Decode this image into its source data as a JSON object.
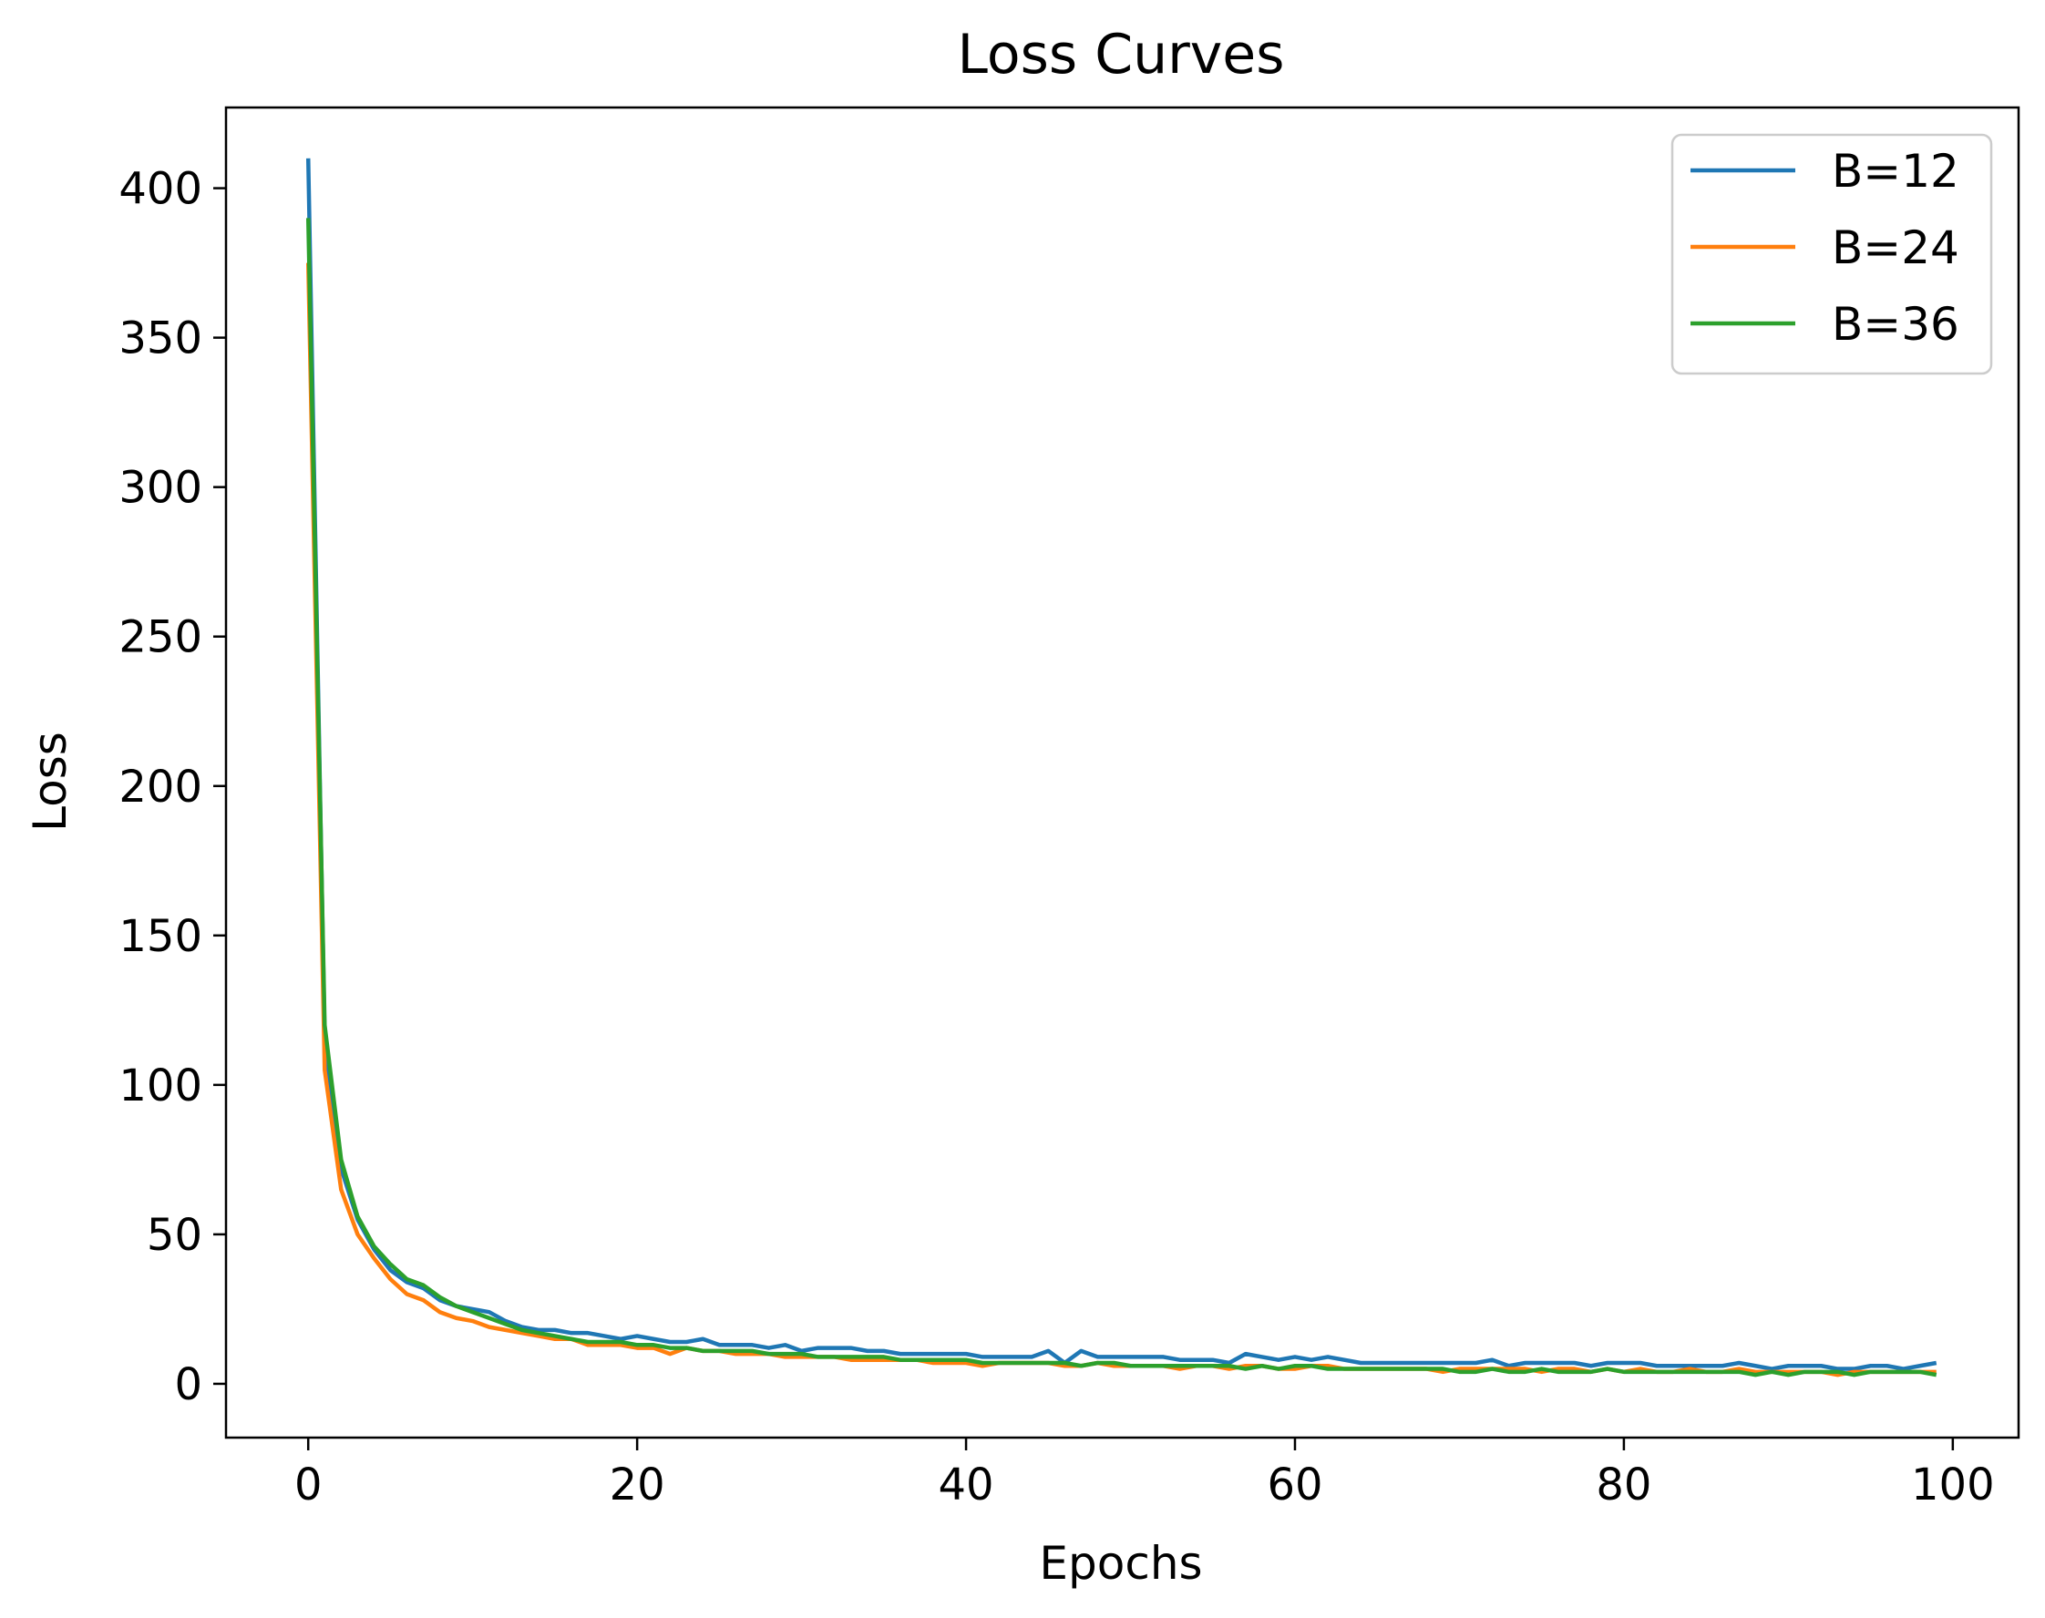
{
  "chart_data": {
    "type": "line",
    "title": "Loss Curves",
    "xlabel": "Epochs",
    "ylabel": "Loss",
    "xlim": [
      -5,
      104
    ],
    "ylim": [
      -18,
      427
    ],
    "xticks": [
      0,
      20,
      40,
      60,
      80,
      100
    ],
    "yticks": [
      0,
      50,
      100,
      150,
      200,
      250,
      300,
      350,
      400
    ],
    "xtick_labels": [
      "0",
      "20",
      "40",
      "60",
      "80",
      "100"
    ],
    "ytick_labels": [
      "0",
      "50",
      "100",
      "150",
      "200",
      "250",
      "300",
      "350",
      "400"
    ],
    "grid": false,
    "legend_position": "top-right",
    "series": [
      {
        "name": "B=12",
        "color": "#1f77b4",
        "x": [
          0,
          1,
          2,
          3,
          4,
          5,
          6,
          7,
          8,
          9,
          10,
          11,
          12,
          13,
          14,
          15,
          16,
          17,
          18,
          19,
          20,
          21,
          22,
          23,
          24,
          25,
          26,
          27,
          28,
          29,
          30,
          31,
          32,
          33,
          34,
          35,
          36,
          37,
          38,
          39,
          40,
          41,
          42,
          43,
          44,
          45,
          46,
          47,
          48,
          49,
          50,
          51,
          52,
          53,
          54,
          55,
          56,
          57,
          58,
          59,
          60,
          61,
          62,
          63,
          64,
          65,
          66,
          67,
          68,
          69,
          70,
          71,
          72,
          73,
          74,
          75,
          76,
          77,
          78,
          79,
          80,
          81,
          82,
          83,
          84,
          85,
          86,
          87,
          88,
          89,
          90,
          91,
          92,
          93,
          94,
          95,
          96,
          97,
          98,
          99
        ],
        "values": [
          410,
          115,
          72,
          55,
          45,
          38,
          34,
          32,
          28,
          26,
          25,
          24,
          21,
          19,
          18,
          18,
          17,
          17,
          16,
          15,
          16,
          15,
          14,
          14,
          15,
          13,
          13,
          13,
          12,
          13,
          11,
          12,
          12,
          12,
          11,
          11,
          10,
          10,
          10,
          10,
          10,
          9,
          9,
          9,
          9,
          11,
          7,
          11,
          9,
          9,
          9,
          9,
          9,
          8,
          8,
          8,
          7,
          10,
          9,
          8,
          9,
          8,
          9,
          8,
          7,
          7,
          7,
          7,
          7,
          7,
          7,
          7,
          8,
          6,
          7,
          7,
          7,
          7,
          6,
          7,
          7,
          7,
          6,
          6,
          6,
          6,
          6,
          7,
          6,
          5,
          6,
          6,
          6,
          5,
          5,
          6,
          6,
          5,
          6,
          7
        ]
      },
      {
        "name": "B=24",
        "color": "#ff7f0e",
        "x": [
          0,
          1,
          2,
          3,
          4,
          5,
          6,
          7,
          8,
          9,
          10,
          11,
          12,
          13,
          14,
          15,
          16,
          17,
          18,
          19,
          20,
          21,
          22,
          23,
          24,
          25,
          26,
          27,
          28,
          29,
          30,
          31,
          32,
          33,
          34,
          35,
          36,
          37,
          38,
          39,
          40,
          41,
          42,
          43,
          44,
          45,
          46,
          47,
          48,
          49,
          50,
          51,
          52,
          53,
          54,
          55,
          56,
          57,
          58,
          59,
          60,
          61,
          62,
          63,
          64,
          65,
          66,
          67,
          68,
          69,
          70,
          71,
          72,
          73,
          74,
          75,
          76,
          77,
          78,
          79,
          80,
          81,
          82,
          83,
          84,
          85,
          86,
          87,
          88,
          89,
          90,
          91,
          92,
          93,
          94,
          95,
          96,
          97,
          98,
          99
        ],
        "values": [
          375,
          105,
          65,
          50,
          42,
          35,
          30,
          28,
          24,
          22,
          21,
          19,
          18,
          17,
          16,
          15,
          15,
          13,
          13,
          13,
          12,
          12,
          10,
          12,
          11,
          11,
          10,
          10,
          10,
          9,
          9,
          9,
          9,
          8,
          8,
          8,
          8,
          8,
          7,
          7,
          7,
          6,
          7,
          7,
          7,
          7,
          6,
          6,
          7,
          6,
          6,
          6,
          6,
          5,
          6,
          6,
          5,
          6,
          6,
          5,
          5,
          6,
          6,
          5,
          5,
          5,
          5,
          5,
          5,
          4,
          5,
          5,
          5,
          5,
          5,
          4,
          5,
          5,
          4,
          5,
          4,
          5,
          4,
          4,
          5,
          4,
          4,
          5,
          4,
          4,
          4,
          4,
          4,
          3,
          4,
          4,
          4,
          4,
          4,
          4
        ]
      },
      {
        "name": "B=36",
        "color": "#2ca02c",
        "x": [
          0,
          1,
          2,
          3,
          4,
          5,
          6,
          7,
          8,
          9,
          10,
          11,
          12,
          13,
          14,
          15,
          16,
          17,
          18,
          19,
          20,
          21,
          22,
          23,
          24,
          25,
          26,
          27,
          28,
          29,
          30,
          31,
          32,
          33,
          34,
          35,
          36,
          37,
          38,
          39,
          40,
          41,
          42,
          43,
          44,
          45,
          46,
          47,
          48,
          49,
          50,
          51,
          52,
          53,
          54,
          55,
          56,
          57,
          58,
          59,
          60,
          61,
          62,
          63,
          64,
          65,
          66,
          67,
          68,
          69,
          70,
          71,
          72,
          73,
          74,
          75,
          76,
          77,
          78,
          79,
          80,
          81,
          82,
          83,
          84,
          85,
          86,
          87,
          88,
          89,
          90,
          91,
          92,
          93,
          94,
          95,
          96,
          97,
          98,
          99
        ],
        "values": [
          390,
          120,
          75,
          56,
          46,
          40,
          35,
          33,
          29,
          26,
          24,
          22,
          20,
          18,
          17,
          16,
          15,
          14,
          14,
          14,
          13,
          13,
          12,
          12,
          11,
          11,
          11,
          11,
          10,
          10,
          10,
          9,
          9,
          9,
          9,
          9,
          8,
          8,
          8,
          8,
          8,
          7,
          7,
          7,
          7,
          7,
          7,
          6,
          7,
          7,
          6,
          6,
          6,
          6,
          6,
          6,
          6,
          5,
          6,
          5,
          6,
          6,
          5,
          5,
          5,
          5,
          5,
          5,
          5,
          5,
          4,
          4,
          5,
          4,
          4,
          5,
          4,
          4,
          4,
          5,
          4,
          4,
          4,
          4,
          4,
          4,
          4,
          4,
          3,
          4,
          3,
          4,
          4,
          4,
          3,
          4,
          4,
          4,
          4,
          3
        ]
      }
    ]
  }
}
